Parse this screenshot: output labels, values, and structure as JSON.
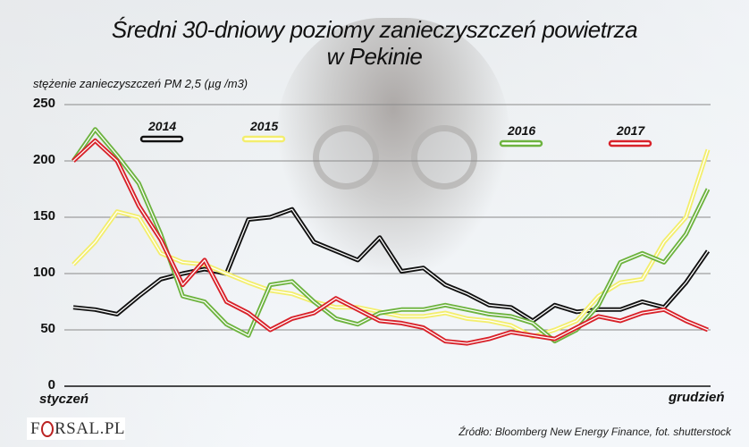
{
  "title_line1": "Średni 30-dniowy poziomy zanieczyszczeń powietrza",
  "title_line2": "w Pekinie",
  "source": "Źródło: Bloomberg New Energy Finance, fot. shutterstock",
  "logo": {
    "pre": "F",
    "post": "RSAL.PL"
  },
  "chart_data": {
    "type": "line",
    "title": "Średni 30-dniowy poziomy zanieczyszczeń powietrza w Pekinie",
    "xlabel": "",
    "ylabel": "stężenie zanieczyszczeń PM 2,5 (µg /m3)",
    "x_start_label": "styczeń",
    "x_end_label": "grudzień",
    "yticks": [
      0,
      50,
      100,
      150,
      200,
      250
    ],
    "ylim": [
      0,
      250
    ],
    "grid": true,
    "legend_position": "top, inside plot",
    "x": [
      1,
      2,
      3,
      4,
      5,
      6,
      7,
      8,
      9,
      10,
      11,
      12,
      13,
      14,
      15,
      16,
      17,
      18,
      19,
      20,
      21,
      22,
      23,
      24,
      25,
      26,
      27,
      28,
      29,
      30
    ],
    "series": [
      {
        "name": "2014",
        "color": "#111111",
        "values": [
          70,
          68,
          64,
          80,
          95,
          100,
          104,
          100,
          148,
          150,
          157,
          128,
          120,
          112,
          132,
          102,
          105,
          90,
          82,
          72,
          70,
          58,
          72,
          66,
          68,
          68,
          75,
          70,
          92,
          120
        ]
      },
      {
        "name": "2015",
        "color": "#f3ee6e",
        "values": [
          108,
          128,
          155,
          150,
          118,
          110,
          108,
          100,
          92,
          85,
          82,
          75,
          70,
          70,
          66,
          62,
          62,
          65,
          60,
          58,
          54,
          44,
          50,
          58,
          80,
          92,
          95,
          128,
          150,
          210
        ]
      },
      {
        "name": "2016",
        "color": "#6db33f",
        "values": [
          200,
          228,
          205,
          180,
          135,
          80,
          75,
          55,
          45,
          90,
          93,
          75,
          60,
          55,
          65,
          68,
          68,
          72,
          68,
          64,
          62,
          56,
          40,
          50,
          72,
          110,
          118,
          110,
          135,
          175
        ]
      },
      {
        "name": "2017",
        "color": "#d8222a",
        "values": [
          200,
          218,
          200,
          160,
          130,
          90,
          112,
          75,
          65,
          50,
          60,
          65,
          78,
          68,
          58,
          56,
          52,
          40,
          38,
          42,
          48,
          45,
          42,
          52,
          62,
          58,
          65,
          68,
          58,
          50
        ]
      }
    ]
  },
  "legend": [
    {
      "label": "2014",
      "color": "#111111"
    },
    {
      "label": "2015",
      "color": "#f3ee6e"
    },
    {
      "label": "2016",
      "color": "#6db33f"
    },
    {
      "label": "2017",
      "color": "#d8222a"
    }
  ]
}
